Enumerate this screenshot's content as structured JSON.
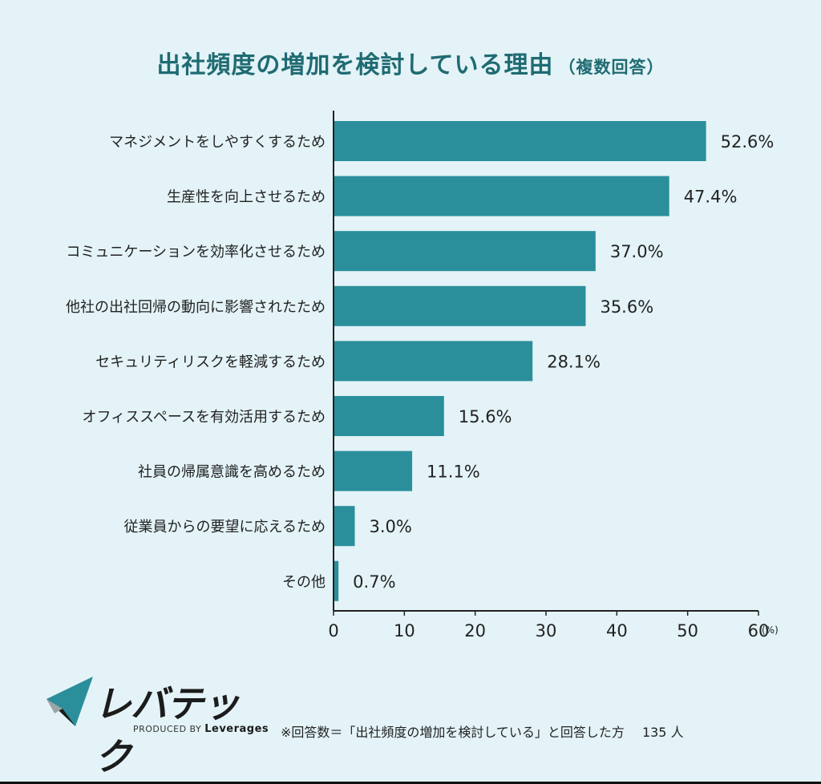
{
  "title": "出社頻度の増加を検討している理由",
  "subtitle": "（複数回答）",
  "chart_data": {
    "type": "bar",
    "orientation": "horizontal",
    "categories": [
      "マネジメントをしやすくするため",
      "生産性を向上させるため",
      "コミュニケーションを効率化させるため",
      "他社の出社回帰の動向に影響されたため",
      "セキュリティリスクを軽減するため",
      "オフィススペースを有効活用するため",
      "社員の帰属意識を高めるため",
      "従業員からの要望に応えるため",
      "その他"
    ],
    "values": [
      52.6,
      47.4,
      37.0,
      35.6,
      28.1,
      15.6,
      11.1,
      3.0,
      0.7
    ],
    "value_labels": [
      "52.6%",
      "47.4%",
      "37.0%",
      "35.6%",
      "28.1%",
      "15.6%",
      "11.1%",
      "3.0%",
      "0.7%"
    ],
    "xlim": [
      0,
      60
    ],
    "xticks": [
      "0",
      "10",
      "20",
      "30",
      "40",
      "50",
      "60"
    ],
    "x_unit": "(%)",
    "grid": false,
    "bar_color": "#2a8f9b"
  },
  "logo": {
    "wordmark": "レバテック",
    "produced_by": "PRODUCED BY",
    "company": "Leverages"
  },
  "footnote": {
    "text": "※回答数＝「出社頻度の増加を検討している」と回答した方",
    "count": "135 人"
  }
}
